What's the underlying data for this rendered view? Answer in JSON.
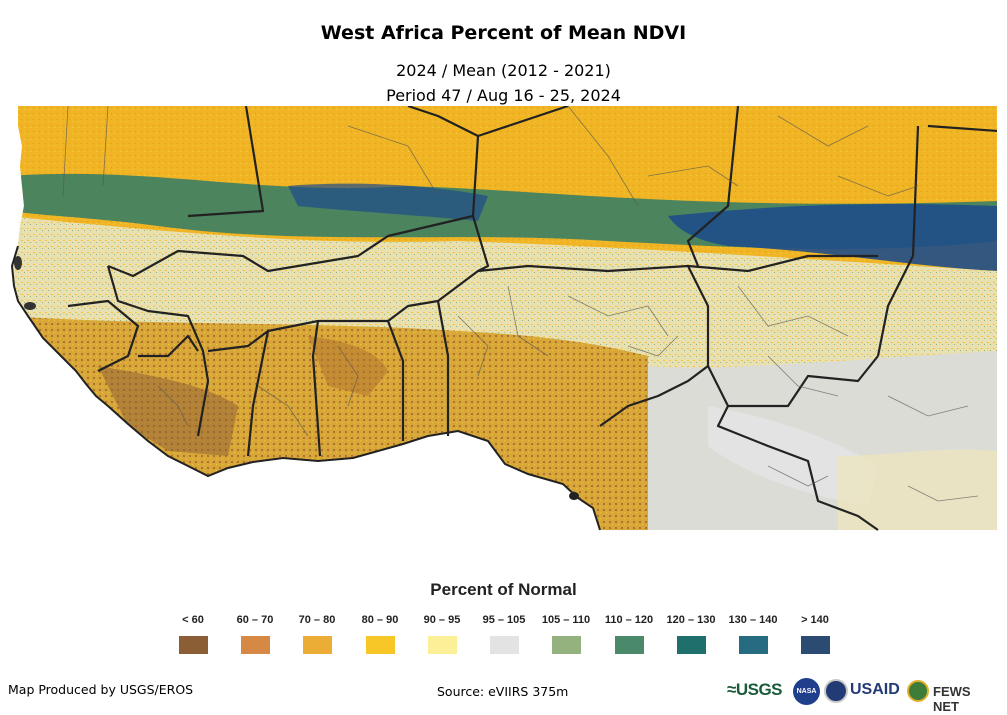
{
  "title": "West Africa Percent of Mean NDVI",
  "subtitle_line1": "2024 / Mean (2012 - 2021)",
  "subtitle_line2": "Period 47 / Aug 16 - 25, 2024",
  "legend": {
    "title": "Percent of Normal",
    "items": [
      {
        "label": "< 60",
        "color": "#8c5e35"
      },
      {
        "label": "60 – 70",
        "color": "#d68845"
      },
      {
        "label": "70 – 80",
        "color": "#ebad36"
      },
      {
        "label": "80 – 90",
        "color": "#f6c727"
      },
      {
        "label": "90 – 95",
        "color": "#fbf097"
      },
      {
        "label": "95 – 105",
        "color": "#e3e3e3"
      },
      {
        "label": "105 – 110",
        "color": "#93b27d"
      },
      {
        "label": "110 – 120",
        "color": "#4a8a6b"
      },
      {
        "label": "120 – 130",
        "color": "#1f6f6d"
      },
      {
        "label": "130 – 140",
        "color": "#266b7f"
      },
      {
        "label": "> 140",
        "color": "#2b4b72"
      }
    ]
  },
  "footer": {
    "produced_by": "Map Produced by USGS/EROS",
    "source": "Source: eVIIRS 375m"
  },
  "logos": {
    "usgs": "≈USGS",
    "nasa": "NASA",
    "usaid": "USAID",
    "fews": "FEWS NET"
  }
}
